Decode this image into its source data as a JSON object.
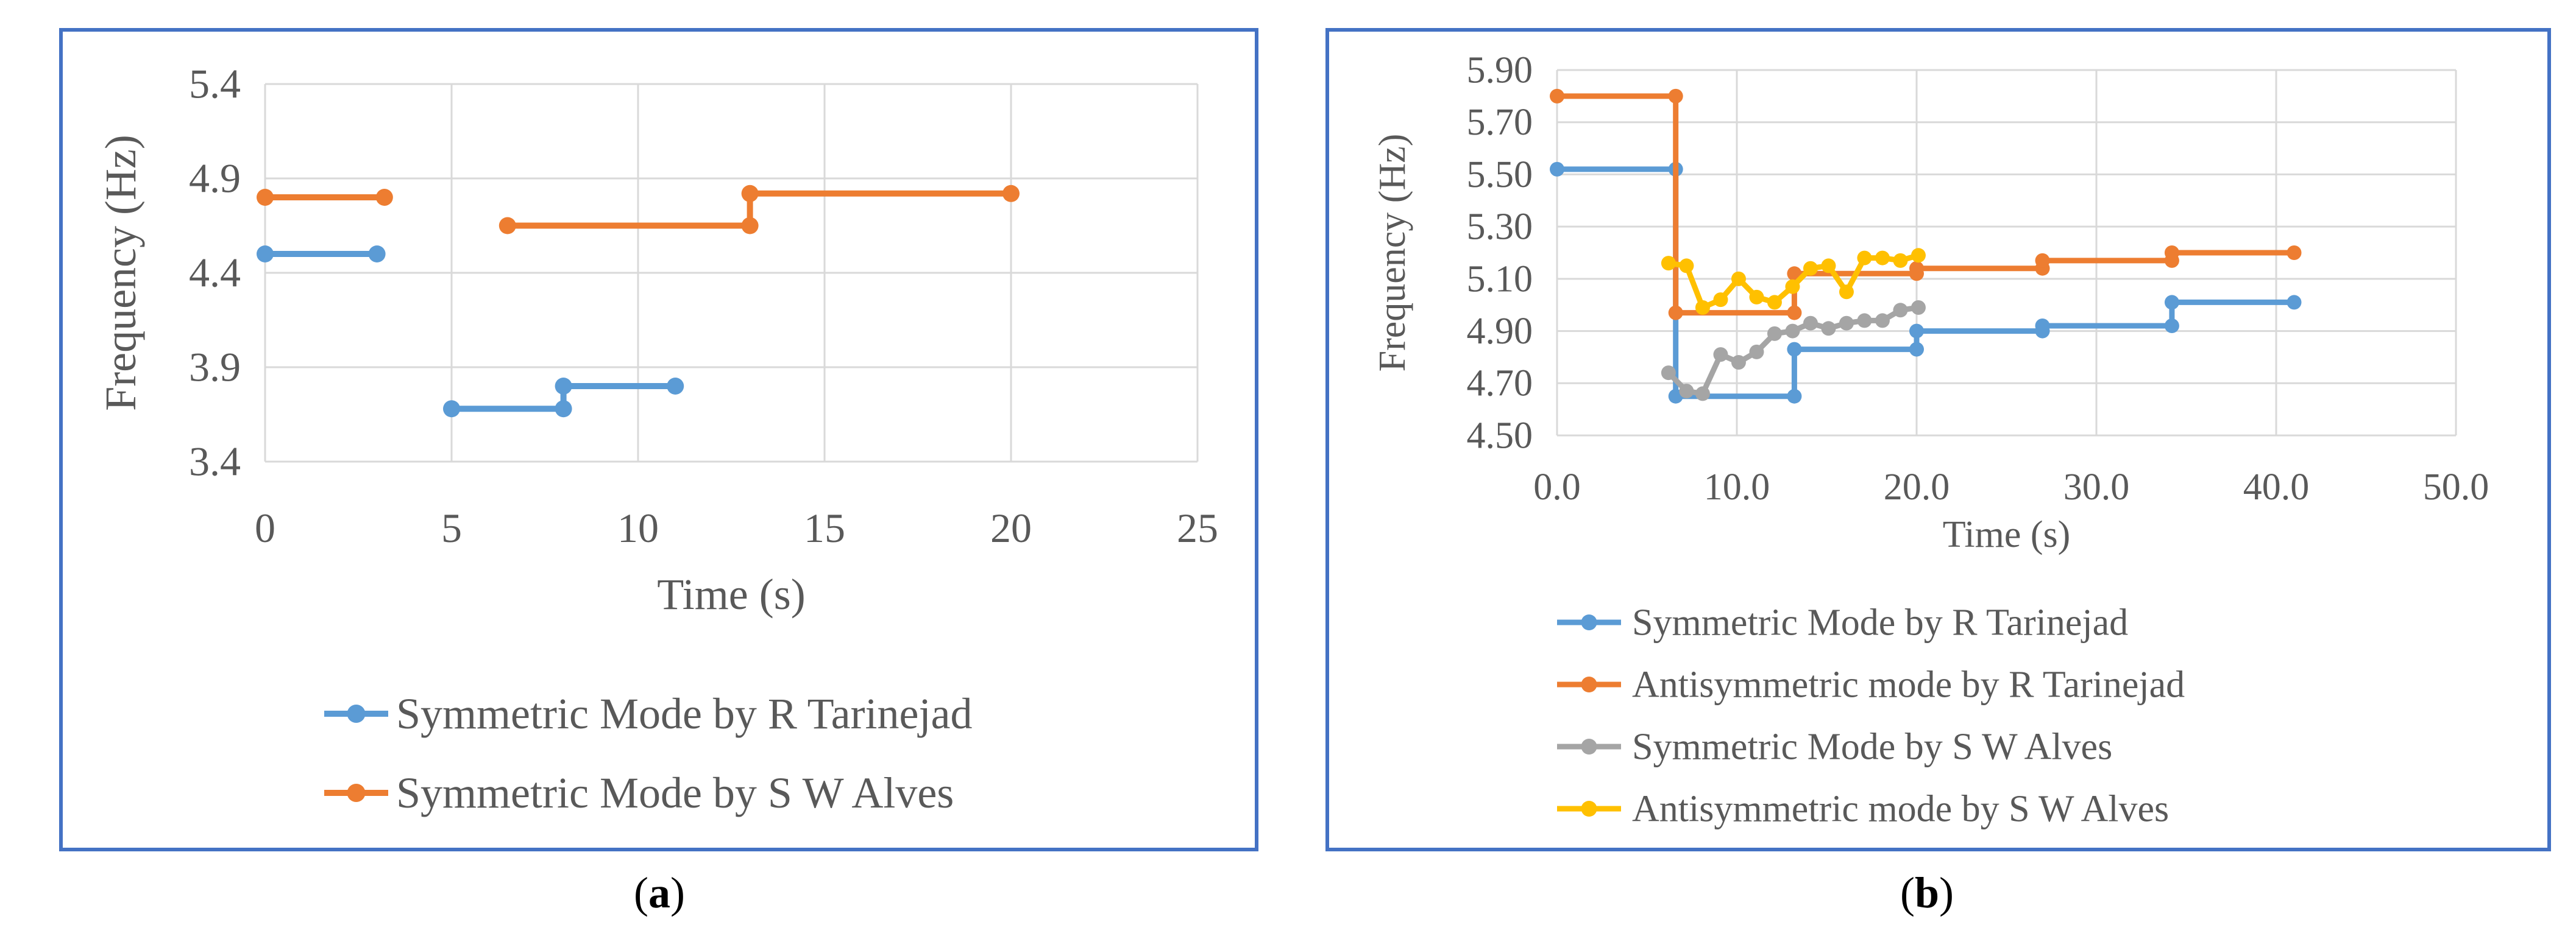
{
  "colors": {
    "frame": "#4472c4",
    "grid": "#d9d9d9",
    "text": "#595959",
    "blue": "#5b9bd5",
    "orange": "#ed7d31",
    "gray": "#a5a5a5",
    "yellow": "#ffc000"
  },
  "captions": {
    "a": "a",
    "b": "b"
  },
  "chart_data": [
    {
      "type": "line",
      "panel": "a",
      "xlabel": "Time (s)",
      "ylabel": "Frequency (Hz)",
      "xlim": [
        0,
        25
      ],
      "ylim": [
        3.4,
        5.4
      ],
      "xticks": [
        0,
        5,
        10,
        15,
        20,
        25
      ],
      "xtick_labels": [
        "0",
        "5",
        "10",
        "15",
        "20",
        "25"
      ],
      "yticks": [
        3.4,
        3.9,
        4.4,
        4.9,
        5.4
      ],
      "ytick_labels": [
        "3.4",
        "3.9",
        "4.4",
        "4.9",
        "5.4"
      ],
      "grid": true,
      "legend_position": "bottom",
      "series": [
        {
          "name": "Symmetric Mode by R Tarinejad",
          "color": "#5b9bd5",
          "segments": [
            [
              [
                0,
                4.5
              ],
              [
                3,
                4.5
              ]
            ],
            [
              [
                5,
                3.68
              ],
              [
                8,
                3.68
              ],
              [
                8,
                3.8
              ],
              [
                11,
                3.8
              ]
            ]
          ]
        },
        {
          "name": "Symmetric Mode by S W Alves",
          "color": "#ed7d31",
          "segments": [
            [
              [
                0,
                4.8
              ],
              [
                3.2,
                4.8
              ]
            ],
            [
              [
                6.5,
                4.65
              ],
              [
                13,
                4.65
              ],
              [
                13,
                4.82
              ],
              [
                20,
                4.82
              ]
            ]
          ]
        }
      ]
    },
    {
      "type": "line",
      "panel": "b",
      "xlabel": "Time (s)",
      "ylabel": "Frequency (Hz)",
      "xlim": [
        0,
        50
      ],
      "ylim": [
        4.5,
        5.9
      ],
      "xticks": [
        0,
        10,
        20,
        30,
        40,
        50
      ],
      "xtick_labels": [
        "0.0",
        "10.0",
        "20.0",
        "30.0",
        "40.0",
        "50.0"
      ],
      "yticks": [
        4.5,
        4.7,
        4.9,
        5.1,
        5.3,
        5.5,
        5.7,
        5.9
      ],
      "ytick_labels": [
        "4.50",
        "4.70",
        "4.90",
        "5.10",
        "5.30",
        "5.50",
        "5.70",
        "5.90"
      ],
      "grid": true,
      "legend_position": "bottom",
      "series": [
        {
          "name": "Symmetric Mode by R Tarinejad",
          "color": "#5b9bd5",
          "segments": [
            [
              [
                0,
                5.52
              ],
              [
                6.6,
                5.52
              ],
              [
                6.6,
                4.65
              ],
              [
                13.2,
                4.65
              ],
              [
                13.2,
                4.83
              ],
              [
                20,
                4.83
              ],
              [
                20,
                4.9
              ],
              [
                27,
                4.9
              ],
              [
                27,
                4.92
              ],
              [
                34.2,
                4.92
              ],
              [
                34.2,
                5.01
              ],
              [
                41,
                5.01
              ]
            ]
          ]
        },
        {
          "name": "Antisymmetric mode by R Tarinejad",
          "color": "#ed7d31",
          "segments": [
            [
              [
                0,
                5.8
              ],
              [
                6.6,
                5.8
              ],
              [
                6.6,
                4.97
              ],
              [
                13.2,
                4.97
              ],
              [
                13.2,
                5.12
              ],
              [
                20,
                5.12
              ],
              [
                20,
                5.14
              ],
              [
                27,
                5.14
              ],
              [
                27,
                5.17
              ],
              [
                34.2,
                5.17
              ],
              [
                34.2,
                5.2
              ],
              [
                41,
                5.2
              ]
            ]
          ]
        },
        {
          "name": "Symmetric Mode by S W Alves",
          "color": "#a5a5a5",
          "segments": [
            [
              [
                6.2,
                4.74
              ],
              [
                7.2,
                4.67
              ],
              [
                8.1,
                4.66
              ],
              [
                9.1,
                4.81
              ],
              [
                10.1,
                4.78
              ],
              [
                11.1,
                4.82
              ],
              [
                12.1,
                4.89
              ],
              [
                13.1,
                4.9
              ],
              [
                14.1,
                4.93
              ],
              [
                15.1,
                4.91
              ],
              [
                16.1,
                4.93
              ],
              [
                17.1,
                4.94
              ],
              [
                18.1,
                4.94
              ],
              [
                19.1,
                4.98
              ],
              [
                20.1,
                4.99
              ]
            ]
          ]
        },
        {
          "name": "Antisymmetric mode by S W Alves",
          "color": "#ffc000",
          "segments": [
            [
              [
                6.2,
                5.16
              ],
              [
                7.2,
                5.15
              ],
              [
                8.1,
                4.99
              ],
              [
                9.1,
                5.02
              ],
              [
                10.1,
                5.1
              ],
              [
                11.1,
                5.03
              ],
              [
                12.1,
                5.01
              ],
              [
                13.1,
                5.07
              ],
              [
                14.1,
                5.14
              ],
              [
                15.1,
                5.15
              ],
              [
                16.1,
                5.05
              ],
              [
                17.1,
                5.18
              ],
              [
                18.1,
                5.18
              ],
              [
                19.1,
                5.17
              ],
              [
                20.1,
                5.19
              ]
            ]
          ]
        }
      ]
    }
  ]
}
